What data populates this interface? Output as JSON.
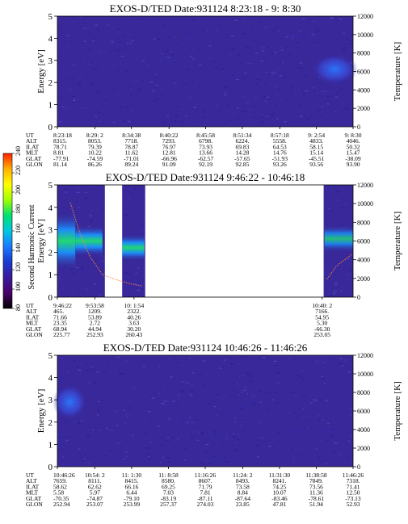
{
  "colorbar": {
    "label": "Second Harmonic Current",
    "ticks": [
      "80",
      "100",
      "120",
      "140",
      "160",
      "180",
      "200",
      "220",
      "240"
    ],
    "colors": [
      "#000000",
      "#4a006a",
      "#3a1a9a",
      "#1a3ad0",
      "#1a7aff",
      "#00c8e0",
      "#00e070",
      "#a0ff00",
      "#ffff00",
      "#ffb000",
      "#ff2000"
    ]
  },
  "palette": {
    "background": "#38289a",
    "speckle": [
      "#2a1a88",
      "#4a3ab0",
      "#3030c0",
      "#5048c8",
      "#2020a0"
    ],
    "blob_inner": "#2a7aff",
    "blob_outer": "#3a4ad8",
    "hot_core": "#20e070",
    "hot_mid": "#10c8d8",
    "hot_edge": "#1a90ff",
    "line_orange": "#ff8040",
    "line_light": "#c0a0ff"
  },
  "panels": [
    {
      "id": "panel-1",
      "title": "EXOS-D/TED   Date:931124   8:23:18 -  9: 8:30",
      "ylabel": "Energy [eV]",
      "y2label": "Temperature [K]",
      "yticks": [
        "0",
        "1",
        "2",
        "3",
        "4",
        "5"
      ],
      "y2ticks": [
        "0",
        "2000",
        "4000",
        "6000",
        "8000",
        "10000",
        "12000"
      ],
      "rows": [
        {
          "name": "UT",
          "values": [
            "8:23:18",
            "8:29: 2",
            "8:34:38",
            "8:40:22",
            "8:45:58",
            "8:51:34",
            "8:57:18",
            "9: 2:54",
            "9: 8:30"
          ]
        },
        {
          "name": "ALT",
          "values": [
            "8315.",
            "8053.",
            "7718.",
            "7293.",
            "6798.",
            "6224.",
            "5558.",
            "4833.",
            "4046."
          ]
        },
        {
          "name": "ILAT",
          "values": [
            "78.71",
            "79.39",
            "78.87",
            "76.97",
            "73.93",
            "69.83",
            "64.53",
            "58.15",
            "50.32"
          ]
        },
        {
          "name": "MLT",
          "values": [
            "8.81",
            "10.22",
            "11.62",
            "12.81",
            "13.66",
            "14.28",
            "14.76",
            "15.14",
            "15.47"
          ]
        },
        {
          "name": "GLAT",
          "values": [
            "-77.91",
            "-74.59",
            "-71.01",
            "-66.96",
            "-62.57",
            "-57.65",
            "-51.93",
            "-45.51",
            "-38.09"
          ]
        },
        {
          "name": "GLON",
          "values": [
            "81.14",
            "86.26",
            "89.24",
            "91.09",
            "92.19",
            "92.85",
            "93.26",
            "93.56",
            "93.90"
          ]
        }
      ]
    },
    {
      "id": "panel-2",
      "title": "EXOS-D/TED   Date:931124   9:46:22 - 10:46:18",
      "ylabel": "Energy [eV]",
      "y2label": "Temperature [K]",
      "yticks": [
        "0",
        "1",
        "2",
        "3",
        "4",
        "5"
      ],
      "y2ticks": [
        "0",
        "2000",
        "4000",
        "6000",
        "8000",
        "10000",
        "12000"
      ],
      "rows": [
        {
          "name": "UT",
          "values": [
            "9:46:22",
            "9:53:58",
            "10: 1:54",
            "10:40: 2"
          ]
        },
        {
          "name": "ALT",
          "values": [
            "465.",
            "1209.",
            "2322.",
            "7166."
          ]
        },
        {
          "name": "ILAT",
          "values": [
            "71.66",
            "53.89",
            "40.26",
            "54.95"
          ]
        },
        {
          "name": "MLT",
          "values": [
            "23.35",
            "2.72",
            "3.63",
            "5.30"
          ]
        },
        {
          "name": "GLAT",
          "values": [
            "68.94",
            "44.94",
            "30.20",
            "-66.30"
          ]
        },
        {
          "name": "GLON",
          "values": [
            "225.77",
            "252.93",
            "260.43",
            "253.05"
          ]
        }
      ]
    },
    {
      "id": "panel-3",
      "title": "EXOS-D/TED   Date:931124   10:46:26 - 11:46:26",
      "ylabel": "Energy [eV]",
      "y2label": "Temperature [K]",
      "yticks": [
        "0",
        "1",
        "2",
        "3",
        "4",
        "5"
      ],
      "y2ticks": [
        "0",
        "2000",
        "4000",
        "6000",
        "8000",
        "10000",
        "12000"
      ],
      "rows": [
        {
          "name": "UT",
          "values": [
            "10:46:26",
            "10:54: 2",
            "11: 1:30",
            "11: 8:58",
            "11:16:26",
            "11:24: 2",
            "11:31:30",
            "11:38:58",
            "11:46:26"
          ]
        },
        {
          "name": "ALT",
          "values": [
            "7659.",
            "8111.",
            "8415.",
            "8580.",
            "8607.",
            "8493.",
            "8241.",
            "7849.",
            "7318."
          ]
        },
        {
          "name": "ILAT",
          "values": [
            "58.62",
            "62.62",
            "66.16",
            "69.25",
            "71.79",
            "73.58",
            "74.25",
            "73.56",
            "71.41"
          ]
        },
        {
          "name": "MLT",
          "values": [
            "5.58",
            "5.97",
            "6.44",
            "7.03",
            "7.81",
            "8.84",
            "10.07",
            "11.36",
            "12.50"
          ]
        },
        {
          "name": "GLAT",
          "values": [
            "-70.35",
            "-74.87",
            "-79.10",
            "-83.19",
            "-87.11",
            "-87.64",
            "-83.46",
            "-78.61",
            "-73.13"
          ]
        },
        {
          "name": "GLON",
          "values": [
            "252.94",
            "253.07",
            "253.99",
            "257.37",
            "274.03",
            "23.85",
            "47.81",
            "51.94",
            "52.93"
          ]
        }
      ]
    }
  ],
  "chart_data": [
    {
      "type": "heatmap",
      "title": "EXOS-D/TED   Date:931124   8:23:18 -  9: 8:30",
      "xlabel": "UT",
      "ylabel": "Energy [eV]",
      "y2label": "Temperature [K]",
      "xlim": [
        "8:23:18",
        "9: 8:30"
      ],
      "ylim": [
        0,
        5
      ],
      "y2lim": [
        0,
        12000
      ],
      "x_ticks": [
        "8:23:18",
        "8:29: 2",
        "8:34:38",
        "8:40:22",
        "8:45:58",
        "8:51:34",
        "8:57:18",
        "9: 2:54",
        "9: 8:30"
      ],
      "features": [
        {
          "kind": "low-level background",
          "x_range": [
            "8:23:18",
            "9: 8:30"
          ],
          "energy_range": [
            0,
            5
          ],
          "level": 105
        },
        {
          "kind": "enhancement",
          "x_range": [
            "9: 2:54",
            "9: 8:30"
          ],
          "energy_range": [
            2.0,
            3.4
          ],
          "peak_energy": 2.6,
          "level": 135
        }
      ],
      "data_gaps": []
    },
    {
      "type": "heatmap",
      "title": "EXOS-D/TED   Date:931124   9:46:22 - 10:46:18",
      "xlabel": "UT",
      "ylabel": "Energy [eV]",
      "y2label": "Temperature [K]",
      "xlim": [
        "9:46:22",
        "10:46:18"
      ],
      "ylim": [
        0,
        5
      ],
      "y2lim": [
        0,
        12000
      ],
      "x_ticks": [
        "9:46:22",
        "9:53:58",
        "10: 1:54",
        "10:40: 2"
      ],
      "features": [
        {
          "kind": "band",
          "x_range": [
            "9:46:22",
            "9:50:00"
          ],
          "energy_range": [
            1.2,
            3.8
          ],
          "peak_energy": 2.0,
          "level": 180
        },
        {
          "kind": "band",
          "x_range": [
            "9:50:00",
            "9:55:30"
          ],
          "energy_range": [
            1.8,
            3.2
          ],
          "peak_energy": 2.5,
          "level": 170
        },
        {
          "kind": "band",
          "x_range": [
            "9:59:30",
            "10: 4:00"
          ],
          "energy_range": [
            1.6,
            2.8
          ],
          "peak_energy": 2.2,
          "level": 175
        },
        {
          "kind": "band",
          "x_range": [
            "10:40:30",
            "10:46:18"
          ],
          "energy_range": [
            2.0,
            3.2
          ],
          "peak_energy": 2.7,
          "level": 145
        }
      ],
      "data_gaps": [
        [
          "9:56:00",
          "9:59:30"
        ],
        [
          "10: 4:10",
          "10:40:20"
        ]
      ],
      "overlay_lines": [
        {
          "name": "temperature",
          "color": "orange",
          "x": [
            "9:49:00",
            "9:51:00",
            "9:53:00",
            "9:55:30",
            "9:58:00",
            "10: 1:00",
            "10: 3:30"
          ],
          "y": [
            4.2,
            2.8,
            1.8,
            1.0,
            0.8,
            0.6,
            0.5
          ]
        },
        {
          "name": "temperature",
          "color": "orange",
          "x": [
            "10:41:00",
            "10:43:00",
            "10:46:00"
          ],
          "y": [
            0.8,
            1.4,
            1.9
          ]
        }
      ]
    },
    {
      "type": "heatmap",
      "title": "EXOS-D/TED   Date:931124   10:46:26 - 11:46:26",
      "xlabel": "UT",
      "ylabel": "Energy [eV]",
      "y2label": "Temperature [K]",
      "xlim": [
        "10:46:26",
        "11:46:26"
      ],
      "ylim": [
        0,
        5
      ],
      "y2lim": [
        0,
        12000
      ],
      "x_ticks": [
        "10:46:26",
        "10:54: 2",
        "11: 1:30",
        "11: 8:58",
        "11:16:26",
        "11:24: 2",
        "11:31:30",
        "11:38:58",
        "11:46:26"
      ],
      "features": [
        {
          "kind": "low-level background",
          "x_range": [
            "10:46:26",
            "11:46:26"
          ],
          "energy_range": [
            0,
            5
          ],
          "level": 105
        },
        {
          "kind": "enhancement",
          "x_range": [
            "10:46:26",
            "10:51:30"
          ],
          "energy_range": [
            2.0,
            3.6
          ],
          "peak_energy": 2.9,
          "level": 140
        }
      ],
      "data_gaps": []
    }
  ]
}
